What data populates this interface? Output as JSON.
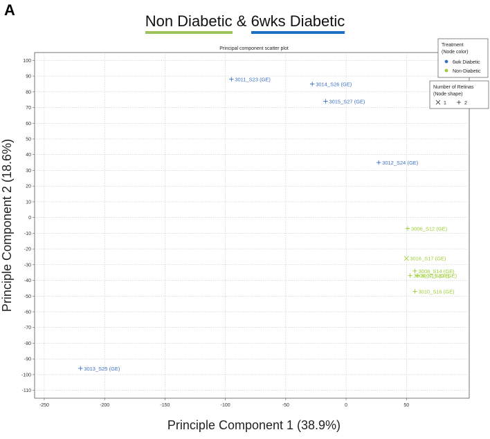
{
  "panel_letter": "A",
  "header": {
    "part1": "Non Diabetic",
    "amp": " & ",
    "part2": "6wks Diabetic"
  },
  "colors": {
    "diabetic": "#3a6fc4",
    "non_diabetic": "#9acd32",
    "grid": "#bbbbbb",
    "underline_nd": "#9bc25b",
    "underline_dia": "#1f6fc4"
  },
  "legend_treatment": {
    "title_line1": "Treatment",
    "title_line2": "(Node color)",
    "items": [
      "6wk Diabetic",
      "Non-Diabetic"
    ]
  },
  "legend_shape": {
    "title_line1": "Number of Retinas",
    "title_line2": "(Node shape)",
    "items": [
      "1",
      "2"
    ]
  },
  "chart_data": {
    "type": "scatter",
    "title": "Principal component scatter plot",
    "xlabel": "Principle Component 1 (38.9%)",
    "ylabel": "Principle Component 2 (18.6%)",
    "xlim": [
      -258,
      102
    ],
    "ylim": [
      -115,
      105
    ],
    "xticks": [
      -250,
      -200,
      -150,
      -100,
      -50,
      0,
      50
    ],
    "yticks": [
      100,
      90,
      80,
      70,
      60,
      50,
      40,
      30,
      20,
      10,
      0,
      -10,
      -20,
      -30,
      -40,
      -50,
      -60,
      -70,
      -80,
      -90,
      -100,
      -110
    ],
    "grid": true,
    "legend_position": "top-right",
    "points": [
      {
        "label": "3011_S23 (GE)",
        "x": -95,
        "y": 88,
        "group": "6wk Diabetic",
        "shape": "plus"
      },
      {
        "label": "3014_S26 (GE)",
        "x": -28,
        "y": 85,
        "group": "6wk Diabetic",
        "shape": "plus"
      },
      {
        "label": "3015_S27 (GE)",
        "x": -17,
        "y": 74,
        "group": "6wk Diabetic",
        "shape": "plus"
      },
      {
        "label": "3012_S24 (GE)",
        "x": 27,
        "y": 35,
        "group": "6wk Diabetic",
        "shape": "plus"
      },
      {
        "label": "3013_S25 (GE)",
        "x": -220,
        "y": -96,
        "group": "6wk Diabetic",
        "shape": "plus"
      },
      {
        "label": "3006_S12 (GE)",
        "x": 51,
        "y": -7,
        "group": "Non-Diabetic",
        "shape": "plus"
      },
      {
        "label": "3016_S17 (GE)",
        "x": 50,
        "y": -26,
        "group": "Non-Diabetic",
        "shape": "cross"
      },
      {
        "label": "3008_S14 (GE)",
        "x": 57,
        "y": -34,
        "group": "Non-Diabetic",
        "shape": "plus"
      },
      {
        "label": "3009_S15 (GE)",
        "x": 53,
        "y": -37,
        "group": "Non-Diabetic",
        "shape": "plus"
      },
      {
        "label": "3007_S13 (GE)",
        "x": 59,
        "y": -37,
        "group": "Non-Diabetic",
        "shape": "plus"
      },
      {
        "label": "3010_S16 (GE)",
        "x": 57,
        "y": -47,
        "group": "Non-Diabetic",
        "shape": "plus"
      }
    ]
  }
}
